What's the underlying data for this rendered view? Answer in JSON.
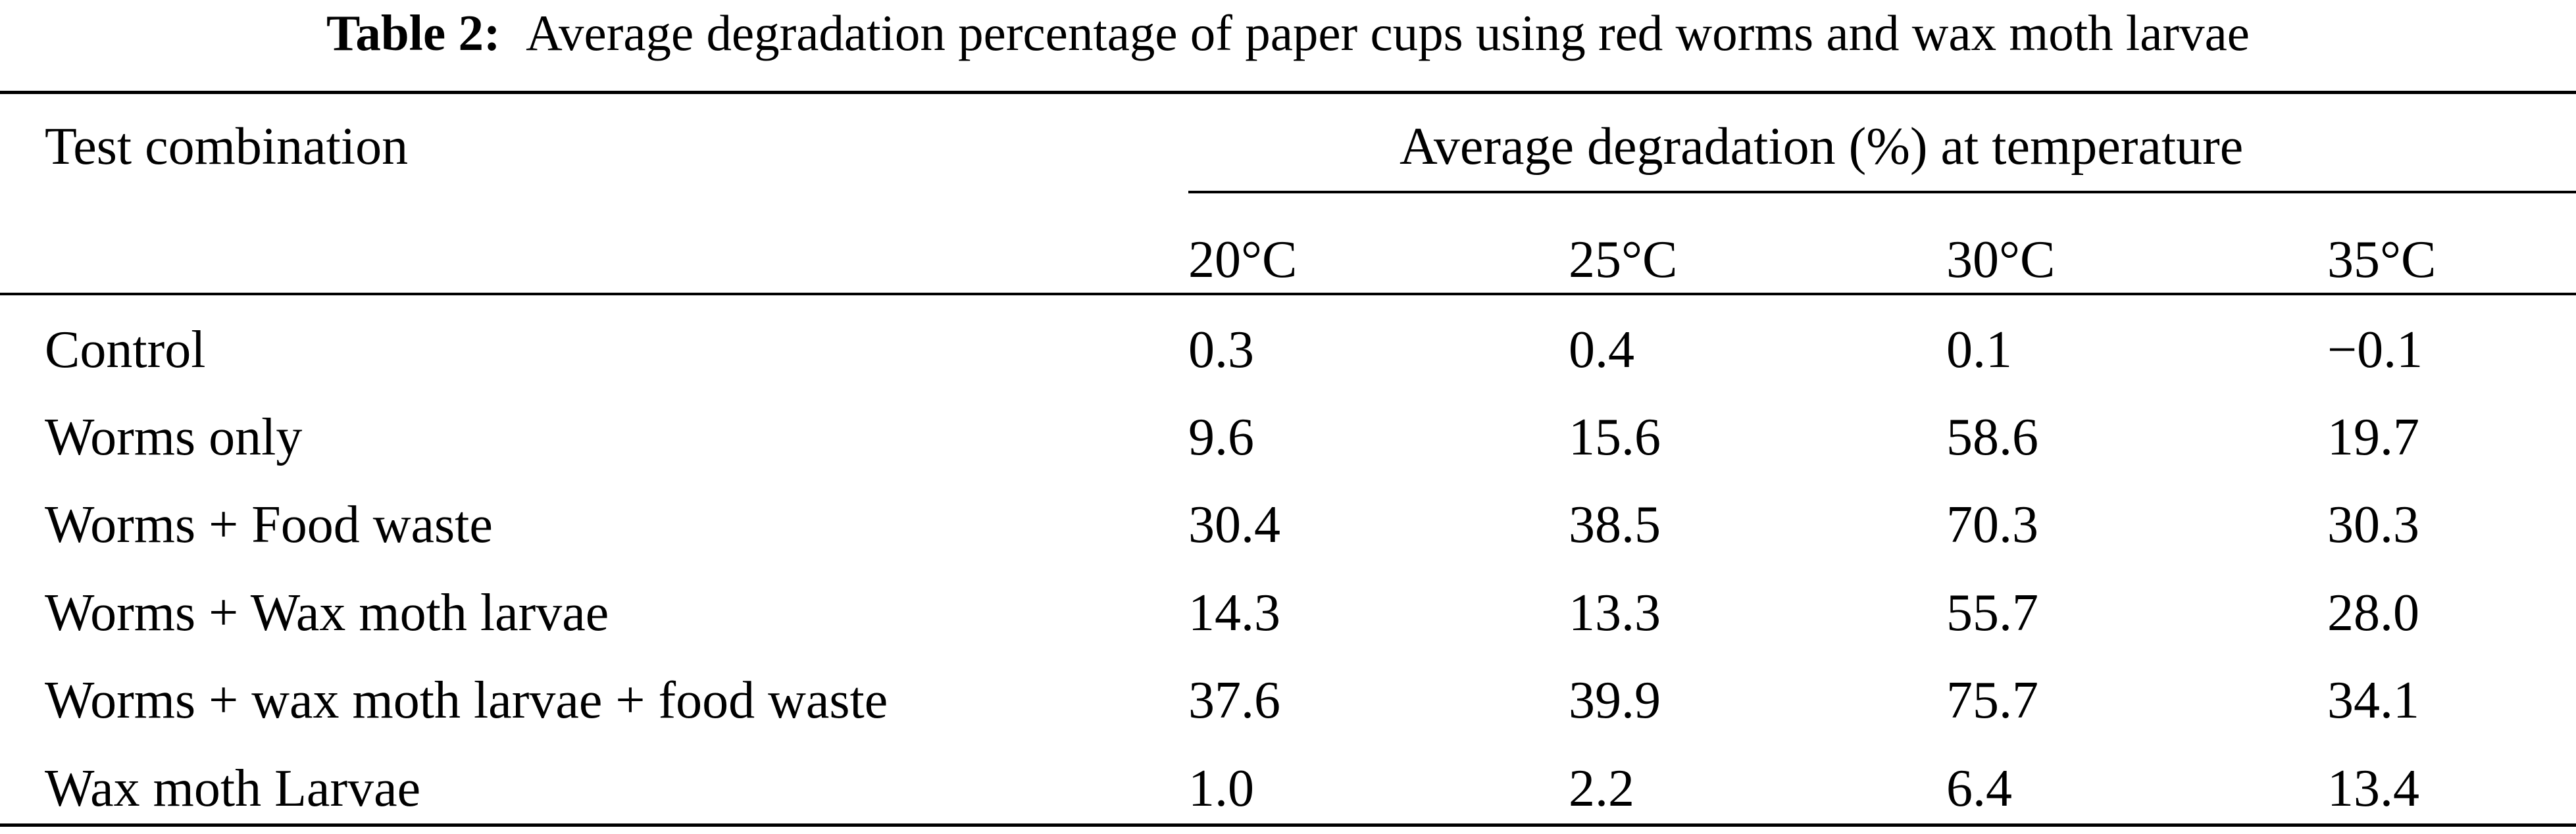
{
  "caption": {
    "label": "Table 2:",
    "text": "Average degradation percentage of paper cups using red worms and wax moth larvae"
  },
  "header": {
    "test_combination": "Test combination",
    "span_label": "Average degradation (%) at temperature",
    "temperatures": [
      "20°C",
      "25°C",
      "30°C",
      "35°C"
    ]
  },
  "rows": [
    {
      "label": "Control",
      "values": [
        "0.3",
        "0.4",
        "0.1",
        "−0.1"
      ]
    },
    {
      "label": "Worms only",
      "values": [
        "9.6",
        "15.6",
        "58.6",
        "19.7"
      ]
    },
    {
      "label": "Worms + Food waste",
      "values": [
        "30.4",
        "38.5",
        "70.3",
        "30.3"
      ]
    },
    {
      "label": "Worms + Wax moth larvae",
      "values": [
        "14.3",
        "13.3",
        "55.7",
        "28.0"
      ]
    },
    {
      "label": "Worms + wax moth larvae + food waste",
      "values": [
        "37.6",
        "39.9",
        "75.7",
        "34.1"
      ]
    },
    {
      "label": "Wax moth Larvae",
      "values": [
        "1.0",
        "2.2",
        "6.4",
        "13.4"
      ]
    }
  ]
}
